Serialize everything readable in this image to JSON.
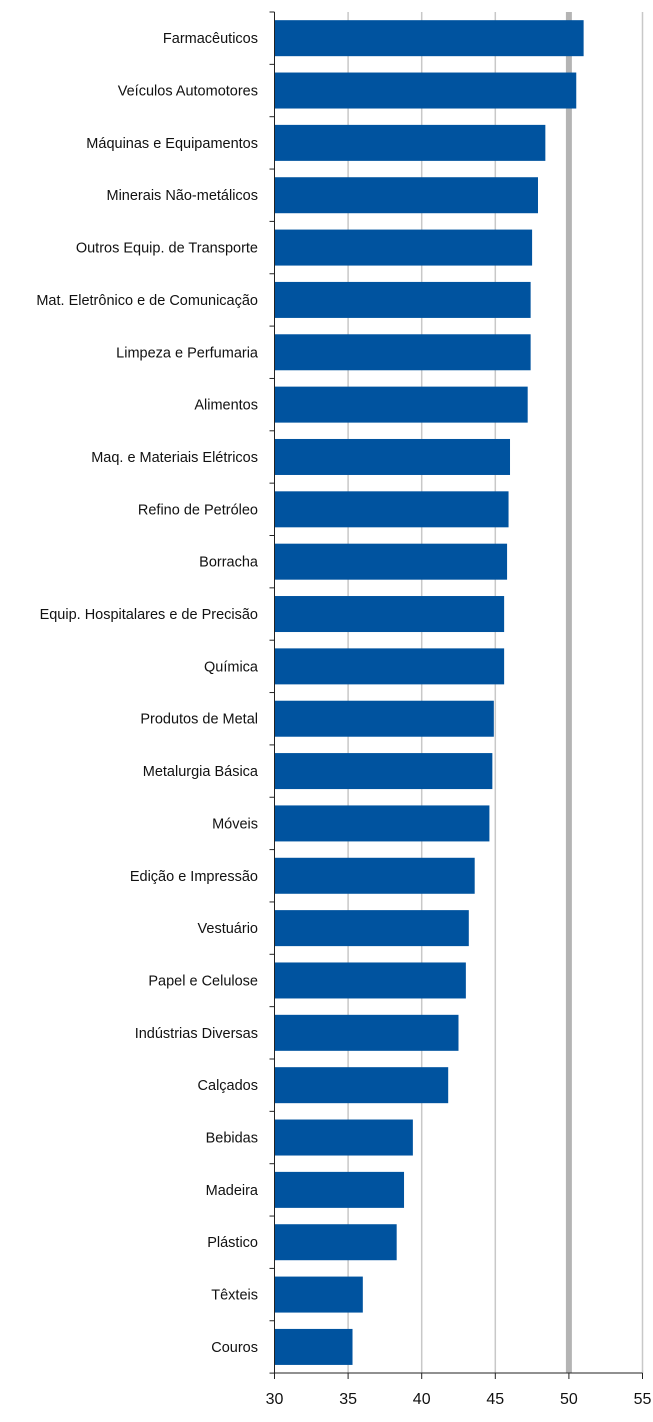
{
  "chart_data": {
    "type": "bar",
    "orientation": "horizontal",
    "title": "",
    "xlabel": "",
    "ylabel": "",
    "categories": [
      "Farmacêuticos",
      "Veículos Automotores",
      "Máquinas e Equipamentos",
      "Minerais Não-metálicos",
      "Outros Equip. de Transporte",
      "Mat. Eletrônico e de Comunicação",
      "Limpeza e Perfumaria",
      "Alimentos",
      "Maq. e Materiais Elétricos",
      "Refino de Petróleo",
      "Borracha",
      "Equip. Hospitalares e de Precisão",
      "Química",
      "Produtos de Metal",
      "Metalurgia Básica",
      "Móveis",
      "Edição e Impressão",
      "Vestuário",
      "Papel e Celulose",
      "Indústrias Diversas",
      "Calçados",
      "Bebidas",
      "Madeira",
      "Plástico",
      "Têxteis",
      "Couros"
    ],
    "values": [
      51.0,
      50.5,
      48.4,
      47.9,
      47.5,
      47.4,
      47.4,
      47.2,
      46.0,
      45.9,
      45.8,
      45.6,
      45.6,
      44.9,
      44.8,
      44.6,
      43.6,
      43.2,
      43.0,
      42.5,
      41.8,
      39.4,
      38.8,
      38.3,
      36.0,
      35.3
    ],
    "xlim": [
      30,
      55
    ],
    "xticks": [
      "30",
      "35",
      "40",
      "45",
      "50",
      "55"
    ],
    "reference_line": 50,
    "grid": true,
    "colors": {
      "bar": "#00539f",
      "grid": "#c8c8c8",
      "reference_line": "#b4b4b4",
      "axis": "#222222",
      "text": "#111111"
    }
  }
}
